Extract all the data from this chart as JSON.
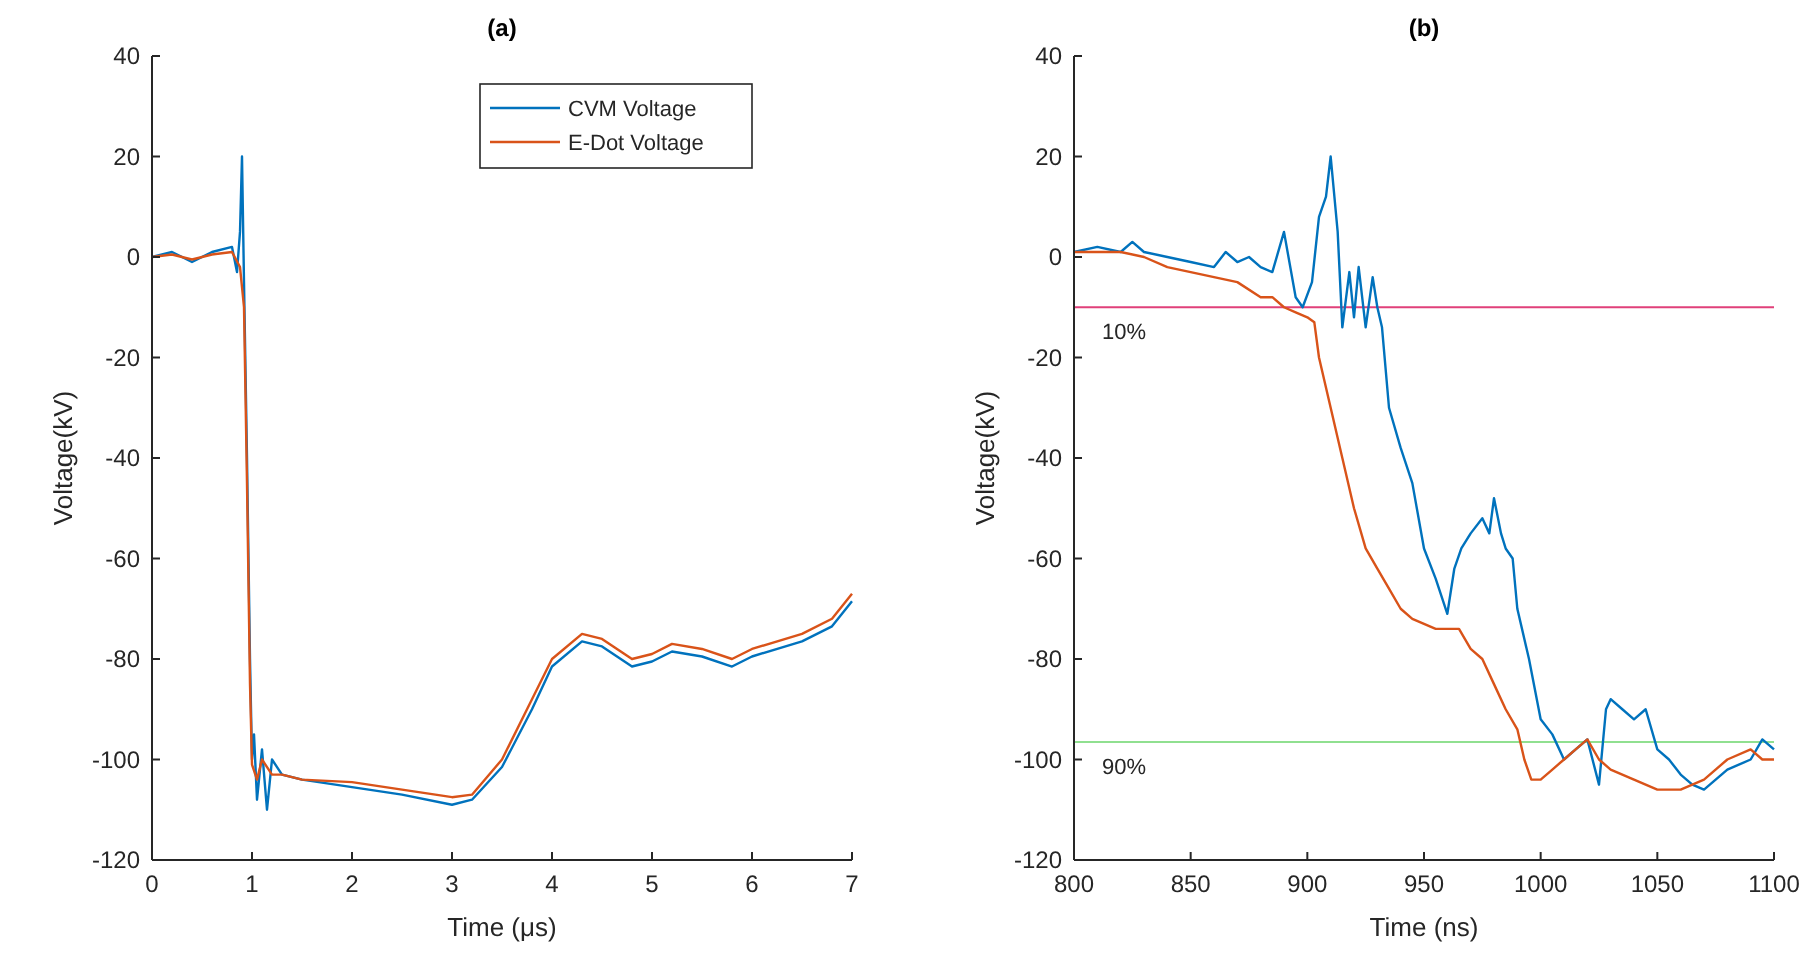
{
  "chart_data": [
    {
      "type": "line",
      "title": "(a)",
      "xlabel": "Time (μs)",
      "ylabel": "Voltage(kV)",
      "xlim": [
        0,
        7
      ],
      "xticks": [
        0,
        1,
        2,
        3,
        4,
        5,
        6,
        7
      ],
      "ylim": [
        -120,
        40
      ],
      "yticks": [
        -120,
        -100,
        -80,
        -60,
        -40,
        -20,
        0,
        20,
        40
      ],
      "legend": "top right",
      "grid": false,
      "series": [
        {
          "name": "CVM Voltage",
          "color": "#0072bd",
          "x": [
            0,
            0.2,
            0.4,
            0.6,
            0.8,
            0.85,
            0.88,
            0.9,
            0.92,
            0.95,
            0.98,
            1.0,
            1.02,
            1.05,
            1.1,
            1.15,
            1.2,
            1.3,
            1.5,
            2,
            2.5,
            3,
            3.2,
            3.5,
            3.8,
            4.0,
            4.3,
            4.5,
            4.8,
            5.0,
            5.2,
            5.5,
            5.8,
            6.0,
            6.5,
            6.8,
            7.0
          ],
          "values": [
            0,
            1,
            -1,
            1,
            2,
            -3,
            5,
            20,
            -5,
            -40,
            -80,
            -100,
            -95,
            -108,
            -98,
            -110,
            -100,
            -103,
            -104,
            -105.5,
            -107,
            -109,
            -108,
            -101.5,
            -90,
            -81.5,
            -76.5,
            -77.5,
            -81.5,
            -80.5,
            -78.5,
            -79.5,
            -81.5,
            -79.5,
            -76.5,
            -73.5,
            -68.5
          ]
        },
        {
          "name": "E-Dot Voltage",
          "color": "#d95319",
          "x": [
            0,
            0.2,
            0.4,
            0.6,
            0.8,
            0.88,
            0.92,
            0.95,
            0.98,
            1.0,
            1.05,
            1.1,
            1.2,
            1.3,
            1.5,
            2,
            2.5,
            3,
            3.2,
            3.5,
            3.8,
            4.0,
            4.3,
            4.5,
            4.8,
            5.0,
            5.2,
            5.5,
            5.8,
            6.0,
            6.5,
            6.8,
            7.0
          ],
          "values": [
            0,
            0.5,
            -0.5,
            0.5,
            1,
            -2,
            -10,
            -45,
            -85,
            -101,
            -104,
            -100,
            -103,
            -103,
            -104,
            -104.5,
            -106,
            -107.5,
            -107,
            -100,
            -88,
            -80,
            -75,
            -76,
            -80,
            -79,
            -77,
            -78,
            -80,
            -78,
            -75,
            -72,
            -67
          ]
        }
      ]
    },
    {
      "type": "line",
      "title": "(b)",
      "xlabel": "Time (ns)",
      "ylabel": "Voltage(kV)",
      "xlim": [
        800,
        1100
      ],
      "xticks": [
        800,
        850,
        900,
        950,
        1000,
        1050,
        1100
      ],
      "ylim": [
        -120,
        40
      ],
      "yticks": [
        -120,
        -100,
        -80,
        -60,
        -40,
        -20,
        0,
        20,
        40
      ],
      "grid": false,
      "ref_lines": [
        {
          "axis": "y",
          "value": -10,
          "color": "#e0407a"
        },
        {
          "axis": "y",
          "value": -96.5,
          "color": "#90e090"
        }
      ],
      "annotations": [
        {
          "text": "10%",
          "x": 812,
          "y": -10
        },
        {
          "text": "90%",
          "x": 812,
          "y": -96.5
        }
      ],
      "series": [
        {
          "color": "#0072bd",
          "x": [
            800,
            810,
            820,
            825,
            830,
            840,
            850,
            860,
            865,
            870,
            875,
            880,
            885,
            890,
            895,
            898,
            902,
            905,
            908,
            910,
            913,
            915,
            918,
            920,
            922,
            925,
            928,
            930,
            932,
            935,
            940,
            945,
            950,
            955,
            960,
            963,
            966,
            970,
            975,
            978,
            980,
            983,
            985,
            988,
            990,
            995,
            1000,
            1005,
            1010,
            1015,
            1020,
            1025,
            1028,
            1030,
            1035,
            1040,
            1045,
            1050,
            1055,
            1060,
            1065,
            1070,
            1075,
            1080,
            1090,
            1095,
            1100
          ],
          "values": [
            1,
            2,
            1,
            3,
            1,
            0,
            -1,
            -2,
            1,
            -1,
            0,
            -2,
            -3,
            5,
            -8,
            -10,
            -5,
            8,
            12,
            20,
            5,
            -14,
            -3,
            -12,
            -2,
            -14,
            -4,
            -10,
            -14,
            -30,
            -38,
            -45,
            -58,
            -64,
            -71,
            -62,
            -58,
            -55,
            -52,
            -55,
            -48,
            -55,
            -58,
            -60,
            -70,
            -80,
            -92,
            -95,
            -100,
            -98,
            -96,
            -105,
            -90,
            -88,
            -90,
            -92,
            -90,
            -98,
            -100,
            -103,
            -105,
            -106,
            -104,
            -102,
            -100,
            -96,
            -98
          ]
        },
        {
          "color": "#d95319",
          "x": [
            800,
            820,
            830,
            840,
            850,
            860,
            870,
            880,
            885,
            890,
            895,
            900,
            903,
            905,
            910,
            915,
            920,
            925,
            930,
            935,
            940,
            945,
            950,
            955,
            960,
            965,
            970,
            975,
            980,
            985,
            990,
            993,
            996,
            1000,
            1005,
            1010,
            1015,
            1020,
            1025,
            1030,
            1040,
            1050,
            1060,
            1070,
            1080,
            1090,
            1095,
            1100
          ],
          "values": [
            1,
            1,
            0,
            -2,
            -3,
            -4,
            -5,
            -8,
            -8,
            -10,
            -11,
            -12,
            -13,
            -20,
            -30,
            -40,
            -50,
            -58,
            -62,
            -66,
            -70,
            -72,
            -73,
            -74,
            -74,
            -74,
            -78,
            -80,
            -85,
            -90,
            -94,
            -100,
            -104,
            -104,
            -102,
            -100,
            -98,
            -96,
            -100,
            -102,
            -104,
            -106,
            -106,
            -104,
            -100,
            -98,
            -100,
            -100
          ]
        }
      ]
    }
  ]
}
